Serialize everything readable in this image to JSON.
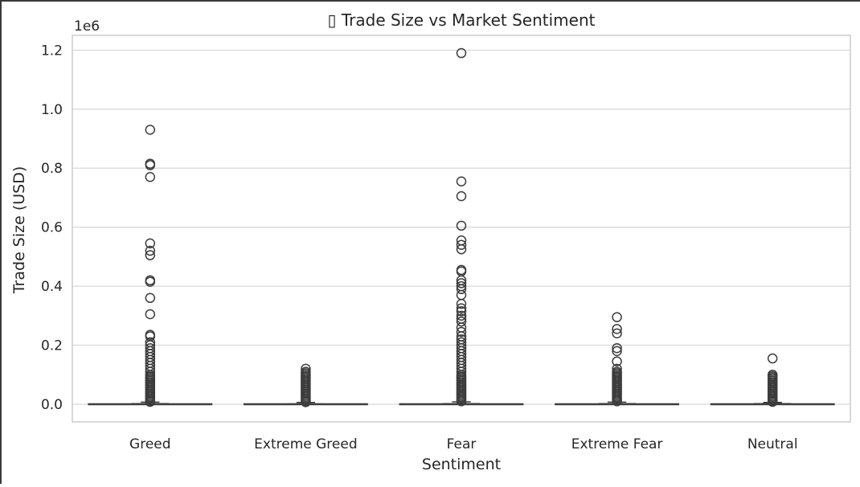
{
  "chart_data": {
    "type": "box",
    "title": "▯ Trade Size vs Market Sentiment",
    "xlabel": "Sentiment",
    "ylabel": "Trade Size (USD)",
    "offset_text": "1e6",
    "ylim": [
      -0.06,
      1.25
    ],
    "y_scale_factor": 1000000,
    "yticks": [
      0.0,
      0.2,
      0.4,
      0.6,
      0.8,
      1.0,
      1.2
    ],
    "ytick_labels": [
      "0.0",
      "0.2",
      "0.4",
      "0.6",
      "0.8",
      "1.0",
      "1.2"
    ],
    "grid": true,
    "categories": [
      "Greed",
      "Extreme Greed",
      "Fear",
      "Extreme Fear",
      "Neutral"
    ],
    "boxes": [
      {
        "category": "Greed",
        "whisker_low": 0.0,
        "q1": 0.0,
        "median": 0.0,
        "q3": 0.004,
        "whisker_high": 0.007,
        "outliers": [
          0.93,
          0.815,
          0.81,
          0.77,
          0.545,
          0.52,
          0.505,
          0.42,
          0.415,
          0.36,
          0.305,
          0.235,
          0.23,
          0.21,
          0.2,
          0.19,
          0.18,
          0.17,
          0.16,
          0.15,
          0.14,
          0.13,
          0.12,
          0.11,
          0.1,
          0.095,
          0.09,
          0.085,
          0.08,
          0.075,
          0.07,
          0.065,
          0.06,
          0.055,
          0.05,
          0.045,
          0.04,
          0.035,
          0.03,
          0.025,
          0.02,
          0.015,
          0.01,
          0.008
        ]
      },
      {
        "category": "Extreme Greed",
        "whisker_low": 0.0,
        "q1": 0.0,
        "median": 0.0,
        "q3": 0.003,
        "whisker_high": 0.006,
        "outliers": [
          0.12,
          0.11,
          0.105,
          0.1,
          0.095,
          0.09,
          0.085,
          0.08,
          0.075,
          0.07,
          0.065,
          0.06,
          0.055,
          0.05,
          0.045,
          0.04,
          0.035,
          0.03,
          0.025,
          0.02,
          0.015,
          0.01,
          0.007
        ]
      },
      {
        "category": "Fear",
        "whisker_low": 0.0,
        "q1": 0.0,
        "median": 0.0,
        "q3": 0.004,
        "whisker_high": 0.008,
        "outliers": [
          1.19,
          0.755,
          0.705,
          0.605,
          0.555,
          0.54,
          0.525,
          0.455,
          0.45,
          0.42,
          0.41,
          0.4,
          0.39,
          0.37,
          0.34,
          0.325,
          0.315,
          0.3,
          0.29,
          0.28,
          0.26,
          0.245,
          0.23,
          0.22,
          0.21,
          0.2,
          0.19,
          0.18,
          0.17,
          0.16,
          0.15,
          0.14,
          0.13,
          0.12,
          0.11,
          0.1,
          0.095,
          0.09,
          0.085,
          0.08,
          0.075,
          0.07,
          0.065,
          0.06,
          0.055,
          0.05,
          0.045,
          0.04,
          0.035,
          0.03,
          0.025,
          0.02,
          0.015,
          0.01
        ]
      },
      {
        "category": "Extreme Fear",
        "whisker_low": 0.0,
        "q1": 0.0,
        "median": 0.0,
        "q3": 0.004,
        "whisker_high": 0.007,
        "outliers": [
          0.295,
          0.255,
          0.24,
          0.19,
          0.18,
          0.145,
          0.12,
          0.11,
          0.105,
          0.1,
          0.095,
          0.09,
          0.085,
          0.08,
          0.075,
          0.07,
          0.065,
          0.06,
          0.055,
          0.05,
          0.045,
          0.04,
          0.035,
          0.03,
          0.025,
          0.02,
          0.015,
          0.01
        ]
      },
      {
        "category": "Neutral",
        "whisker_low": 0.0,
        "q1": 0.0,
        "median": 0.0,
        "q3": 0.004,
        "whisker_high": 0.006,
        "outliers": [
          0.155,
          0.1,
          0.095,
          0.09,
          0.085,
          0.08,
          0.075,
          0.07,
          0.065,
          0.06,
          0.055,
          0.05,
          0.045,
          0.04,
          0.035,
          0.03,
          0.025,
          0.02,
          0.015,
          0.01,
          0.008
        ]
      }
    ],
    "colors": {
      "box_edge": "#3d3d3d",
      "grid": "#d9d9d9",
      "spine": "#cccccc",
      "marker_edge": "#3d3d3d"
    }
  }
}
